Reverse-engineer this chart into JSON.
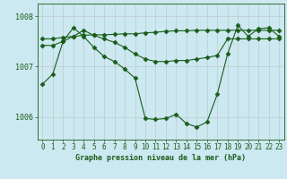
{
  "title": "Graphe pression niveau de la mer (hPa)",
  "background_color": "#cce8f0",
  "line_color": "#1a5c1a",
  "grid_color": "#bbbbbb",
  "ylim": [
    1005.55,
    1008.25
  ],
  "xlim": [
    -0.5,
    23.5
  ],
  "yticks": [
    1006,
    1007,
    1008
  ],
  "xticks": [
    0,
    1,
    2,
    3,
    4,
    5,
    6,
    7,
    8,
    9,
    10,
    11,
    12,
    13,
    14,
    15,
    16,
    17,
    18,
    19,
    20,
    21,
    22,
    23
  ],
  "series1": [
    1007.55,
    1007.55,
    1007.58,
    1007.6,
    1007.62,
    1007.63,
    1007.63,
    1007.64,
    1007.65,
    1007.65,
    1007.67,
    1007.68,
    1007.7,
    1007.71,
    1007.71,
    1007.72,
    1007.72,
    1007.72,
    1007.72,
    1007.72,
    1007.72,
    1007.72,
    1007.72,
    1007.72
  ],
  "series2": [
    1007.42,
    1007.42,
    1007.5,
    1007.6,
    1007.72,
    1007.62,
    1007.55,
    1007.48,
    1007.38,
    1007.25,
    1007.15,
    1007.1,
    1007.1,
    1007.12,
    1007.12,
    1007.15,
    1007.18,
    1007.22,
    1007.55,
    1007.55,
    1007.55,
    1007.55,
    1007.55,
    1007.55
  ],
  "series3": [
    1006.65,
    1006.85,
    1007.5,
    1007.77,
    1007.6,
    1007.38,
    1007.2,
    1007.1,
    1006.95,
    1006.77,
    1005.97,
    1005.95,
    1005.97,
    1006.05,
    1005.87,
    1005.8,
    1005.9,
    1006.45,
    1007.25,
    1007.82,
    1007.6,
    1007.75,
    1007.77,
    1007.6
  ],
  "marker": "D",
  "markersize": 2.5,
  "linewidth": 0.8,
  "figsize": [
    3.2,
    2.0
  ],
  "dpi": 100,
  "title_fontsize": 6.0,
  "tick_fontsize": 5.5,
  "ytick_fontsize": 6.0
}
